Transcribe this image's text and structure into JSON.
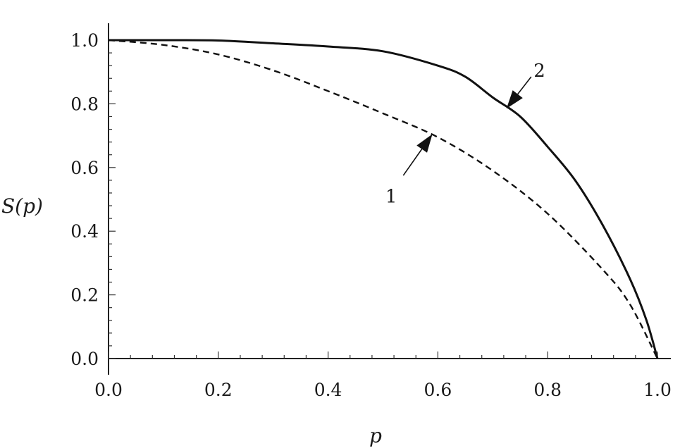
{
  "chart_data": {
    "type": "line",
    "xlabel": "p",
    "ylabel": "S(p)",
    "xlim": [
      0.0,
      1.0
    ],
    "ylim": [
      0.0,
      1.0
    ],
    "x_ticks": [
      "0.0",
      "0.2",
      "0.4",
      "0.6",
      "0.8",
      "1.0"
    ],
    "y_ticks": [
      "0.0",
      "0.2",
      "0.4",
      "0.6",
      "0.8",
      "1.0"
    ],
    "grid": false,
    "legend": "none",
    "series": [
      {
        "style": "dashed",
        "color": "#111111",
        "x": [
          0.0,
          0.1,
          0.2,
          0.3,
          0.4,
          0.5,
          0.6,
          0.7,
          0.8,
          0.9,
          0.95,
          1.0
        ],
        "y": [
          1.0,
          0.985,
          0.955,
          0.905,
          0.84,
          0.77,
          0.695,
          0.59,
          0.455,
          0.28,
          0.17,
          0.0
        ]
      },
      {
        "style": "solid",
        "color": "#111111",
        "x": [
          0.0,
          0.1,
          0.2,
          0.3,
          0.4,
          0.5,
          0.6,
          0.65,
          0.7,
          0.75,
          0.8,
          0.85,
          0.9,
          0.95,
          0.98,
          1.0
        ],
        "y": [
          1.0,
          1.0,
          0.999,
          0.99,
          0.98,
          0.965,
          0.92,
          0.885,
          0.82,
          0.76,
          0.665,
          0.56,
          0.42,
          0.25,
          0.12,
          0.0
        ]
      }
    ],
    "annotations": [
      {
        "text": "1",
        "x": 0.515,
        "y": 0.51,
        "arrow_from": [
          0.537,
          0.575
        ],
        "arrow_to": [
          0.59,
          0.705
        ]
      },
      {
        "text": "2",
        "x": 0.785,
        "y": 0.905,
        "arrow_from": [
          0.77,
          0.885
        ],
        "arrow_to": [
          0.725,
          0.785
        ]
      }
    ]
  }
}
